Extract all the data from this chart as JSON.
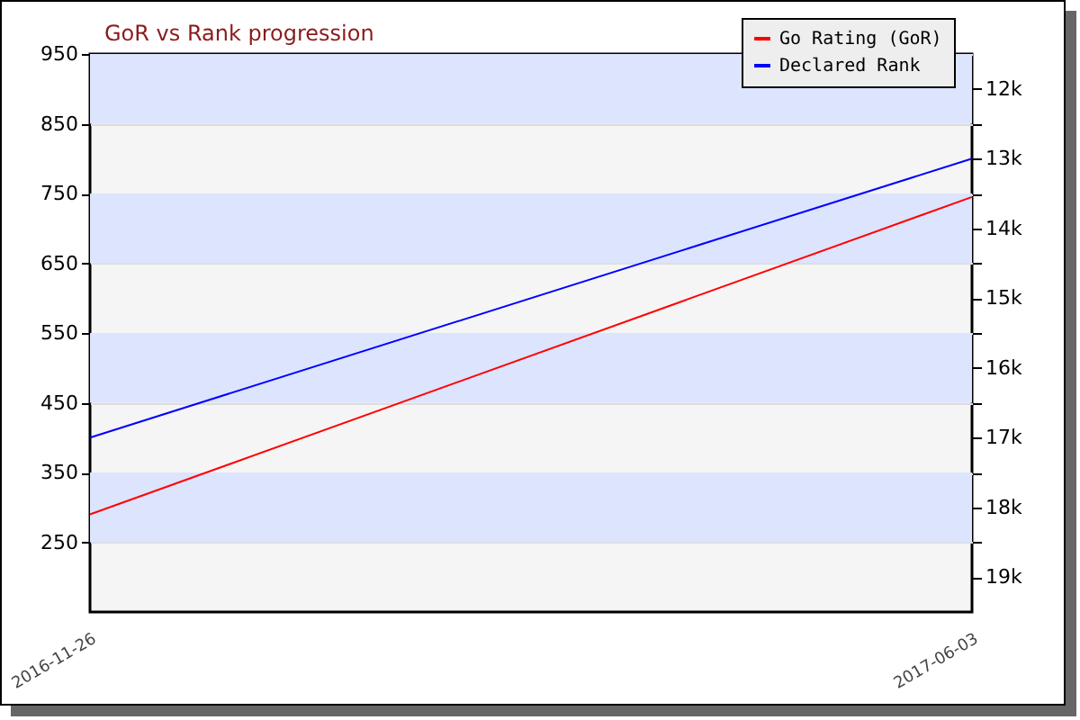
{
  "chart_data": {
    "type": "line",
    "title": "GoR vs Rank progression",
    "x": [
      "2016-11-26",
      "2017-06-03"
    ],
    "series": [
      {
        "name": "Go Rating (GoR)",
        "color": "#ff0000",
        "values": [
          290,
          745
        ]
      },
      {
        "name": "Declared Rank",
        "color": "#0000ff",
        "values": [
          17,
          13
        ],
        "axis": "y2"
      }
    ],
    "xlim": [
      "2016-11-26",
      "2017-06-03"
    ],
    "xticks": [
      "2016-11-26",
      "2017-06-03"
    ],
    "ylim": [
      150,
      950
    ],
    "yticks": [
      250,
      350,
      450,
      550,
      650,
      750,
      850,
      950
    ],
    "y2lim": [
      19.5,
      11.5
    ],
    "y2ticks": [
      {
        "value": 12,
        "label": "12k"
      },
      {
        "value": 12.5,
        "label": null
      },
      {
        "value": 13,
        "label": "13k"
      },
      {
        "value": 13.5,
        "label": null
      },
      {
        "value": 14,
        "label": "14k"
      },
      {
        "value": 14.5,
        "label": null
      },
      {
        "value": 15,
        "label": "15k"
      },
      {
        "value": 15.5,
        "label": null
      },
      {
        "value": 16,
        "label": "16k"
      },
      {
        "value": 16.5,
        "label": null
      },
      {
        "value": 17,
        "label": "17k"
      },
      {
        "value": 17.5,
        "label": null
      },
      {
        "value": 18,
        "label": "18k"
      },
      {
        "value": 18.5,
        "label": null
      },
      {
        "value": 19,
        "label": "19k"
      }
    ],
    "bands": [
      {
        "axis": "y",
        "from": 850,
        "to": 950,
        "color": "#dde4fd"
      },
      {
        "axis": "y",
        "from": 650,
        "to": 750,
        "color": "#dde4fd"
      },
      {
        "axis": "y",
        "from": 450,
        "to": 550,
        "color": "#dde4fd"
      },
      {
        "axis": "y",
        "from": 250,
        "to": 350,
        "color": "#dde4fd"
      }
    ],
    "grid": "y",
    "legend": "top right",
    "marker": "none",
    "line_style": "solid"
  }
}
